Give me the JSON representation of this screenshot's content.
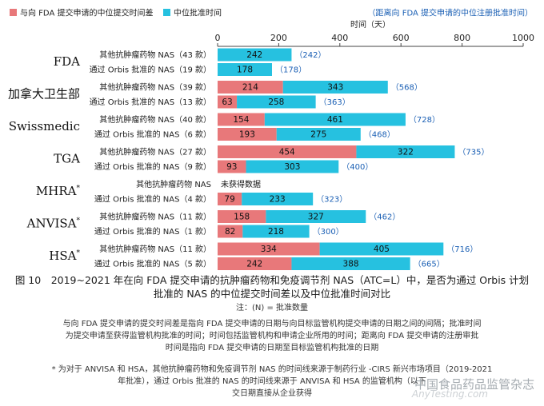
{
  "chart_data": {
    "type": "bar",
    "orientation": "horizontal",
    "stacked": true,
    "xlabel": "时间（天）",
    "xlim": [
      0,
      1000
    ],
    "xticks": [
      0,
      200,
      400,
      600,
      800,
      1000
    ],
    "legend": {
      "series": [
        {
          "name": "与向 FDA 提交申请的中位提交时间差",
          "color": "#e8787a"
        },
        {
          "name": "中位批准时间",
          "color": "#26c1e0"
        }
      ],
      "total_label": "（距离向 FDA 提交申请的中位注册批准时间）",
      "total_color": "#1a5fb4"
    },
    "groups": [
      {
        "agency": "FDA",
        "sup": "",
        "rows": [
          {
            "label": "其他抗肿瘤药物 NAS（43 款）",
            "diff": 0,
            "approval": 242,
            "total": 242,
            "diff_text": "",
            "approval_text": "242",
            "total_text": "（242）"
          },
          {
            "label": "通过 Orbis 批准的 NAS（19 款）",
            "diff": 0,
            "approval": 178,
            "total": 178,
            "diff_text": "",
            "approval_text": "178",
            "total_text": "（178）"
          }
        ]
      },
      {
        "agency": "加拿大卫生部",
        "sup": "",
        "rows": [
          {
            "label": "其他抗肿瘤药物 NAS（39 款）",
            "diff": 214,
            "approval": 343,
            "total": 568,
            "diff_text": "214",
            "approval_text": "343",
            "total_text": "（568）"
          },
          {
            "label": "通过 Orbis 批准的 NAS（13 款）",
            "diff": 63,
            "approval": 258,
            "total": 363,
            "diff_text": "63",
            "approval_text": "258",
            "total_text": "（363）"
          }
        ]
      },
      {
        "agency": "Swissmedic",
        "sup": "",
        "rows": [
          {
            "label": "其他抗肿瘤药物 NAS（40 款）",
            "diff": 154,
            "approval": 461,
            "total": 728,
            "diff_text": "154",
            "approval_text": "461",
            "total_text": "（728）"
          },
          {
            "label": "通过 Orbis 批准的 NAS（6 款）",
            "diff": 193,
            "approval": 275,
            "total": 468,
            "diff_text": "193",
            "approval_text": "275",
            "total_text": "（468）"
          }
        ]
      },
      {
        "agency": "TGA",
        "sup": "",
        "rows": [
          {
            "label": "其他抗肿瘤药物 NAS（27 款）",
            "diff": 454,
            "approval": 322,
            "total": 735,
            "diff_text": "454",
            "approval_text": "322",
            "total_text": "（735）"
          },
          {
            "label": "通过 Orbis 批准的 NAS（9 款）",
            "diff": 93,
            "approval": 303,
            "total": 400,
            "diff_text": "93",
            "approval_text": "303",
            "total_text": "（400）"
          }
        ]
      },
      {
        "agency": "MHRA",
        "sup": "*",
        "rows": [
          {
            "label": "其他抗肿瘤药物 NAS",
            "diff": 0,
            "approval": 0,
            "total": 0,
            "diff_text": "",
            "approval_text": "",
            "total_text": "",
            "note": "未获得数据"
          },
          {
            "label": "通过 Orbis 批准的 NAS（4 款）",
            "diff": 79,
            "approval": 233,
            "total": 323,
            "diff_text": "79",
            "approval_text": "233",
            "total_text": "（323）"
          }
        ]
      },
      {
        "agency": "ANVISA",
        "sup": "*",
        "rows": [
          {
            "label": "其他抗肿瘤药物 NAS（11 款）",
            "diff": 158,
            "approval": 327,
            "total": 462,
            "diff_text": "158",
            "approval_text": "327",
            "total_text": "（462）"
          },
          {
            "label": "通过 Orbis 批准的 NAS（1 款）",
            "diff": 82,
            "approval": 218,
            "total": 300,
            "diff_text": "82",
            "approval_text": "218",
            "total_text": "（300）"
          }
        ]
      },
      {
        "agency": "HSA",
        "sup": "*",
        "rows": [
          {
            "label": "其他抗肿瘤药物 NAS（11 款）",
            "diff": 334,
            "approval": 405,
            "total": 716,
            "diff_text": "334",
            "approval_text": "405",
            "total_text": "（716）"
          },
          {
            "label": "通过 Orbis 批准的 NAS（5 款）",
            "diff": 242,
            "approval": 388,
            "total": 665,
            "diff_text": "242",
            "approval_text": "388",
            "total_text": "（665）"
          }
        ]
      }
    ]
  },
  "caption": {
    "line1": "图 10　2019~2021 年在向 FDA 提交申请的抗肿瘤药物和免疫调节剂 NAS（ATC=L）中，是否为通过 Orbis 计划",
    "line2": "批准的 NAS 的中位提交时间差以及中位批准时间对比"
  },
  "notes": {
    "legend_note": "注：(N) = 批准数量",
    "definition1": "与向 FDA 提交申请的提交时间差是指向 FDA 提交申请的日期与向目标监管机构提交申请的日期之间的间隔；批准时间",
    "definition2": "为提交申请至获得监管机构批准的时间；时间包括监管机构和申请企业所用的时间；距离向 FDA 提交申请的注册审批",
    "definition3": "时间是指向 FDA 提交申请的日期至目标监管机构批准的日期",
    "footnote1": "* 为对于 ANVISA 和 HSA，其他抗肿瘤药物和免疫调节剂 NAS 的时间线来源于制药行业 -CIRS 新兴市场项目（2019-2021",
    "footnote2": "年批准），通过 Orbis 批准的 NAS 的时间线来源于 ANVISA 和 HSA 的监管机构（以下",
    "footnote3": "交日期直接从企业获得"
  },
  "watermark": {
    "text1": "中国食品药品监管杂志",
    "text2": "AnyTesting.com"
  }
}
